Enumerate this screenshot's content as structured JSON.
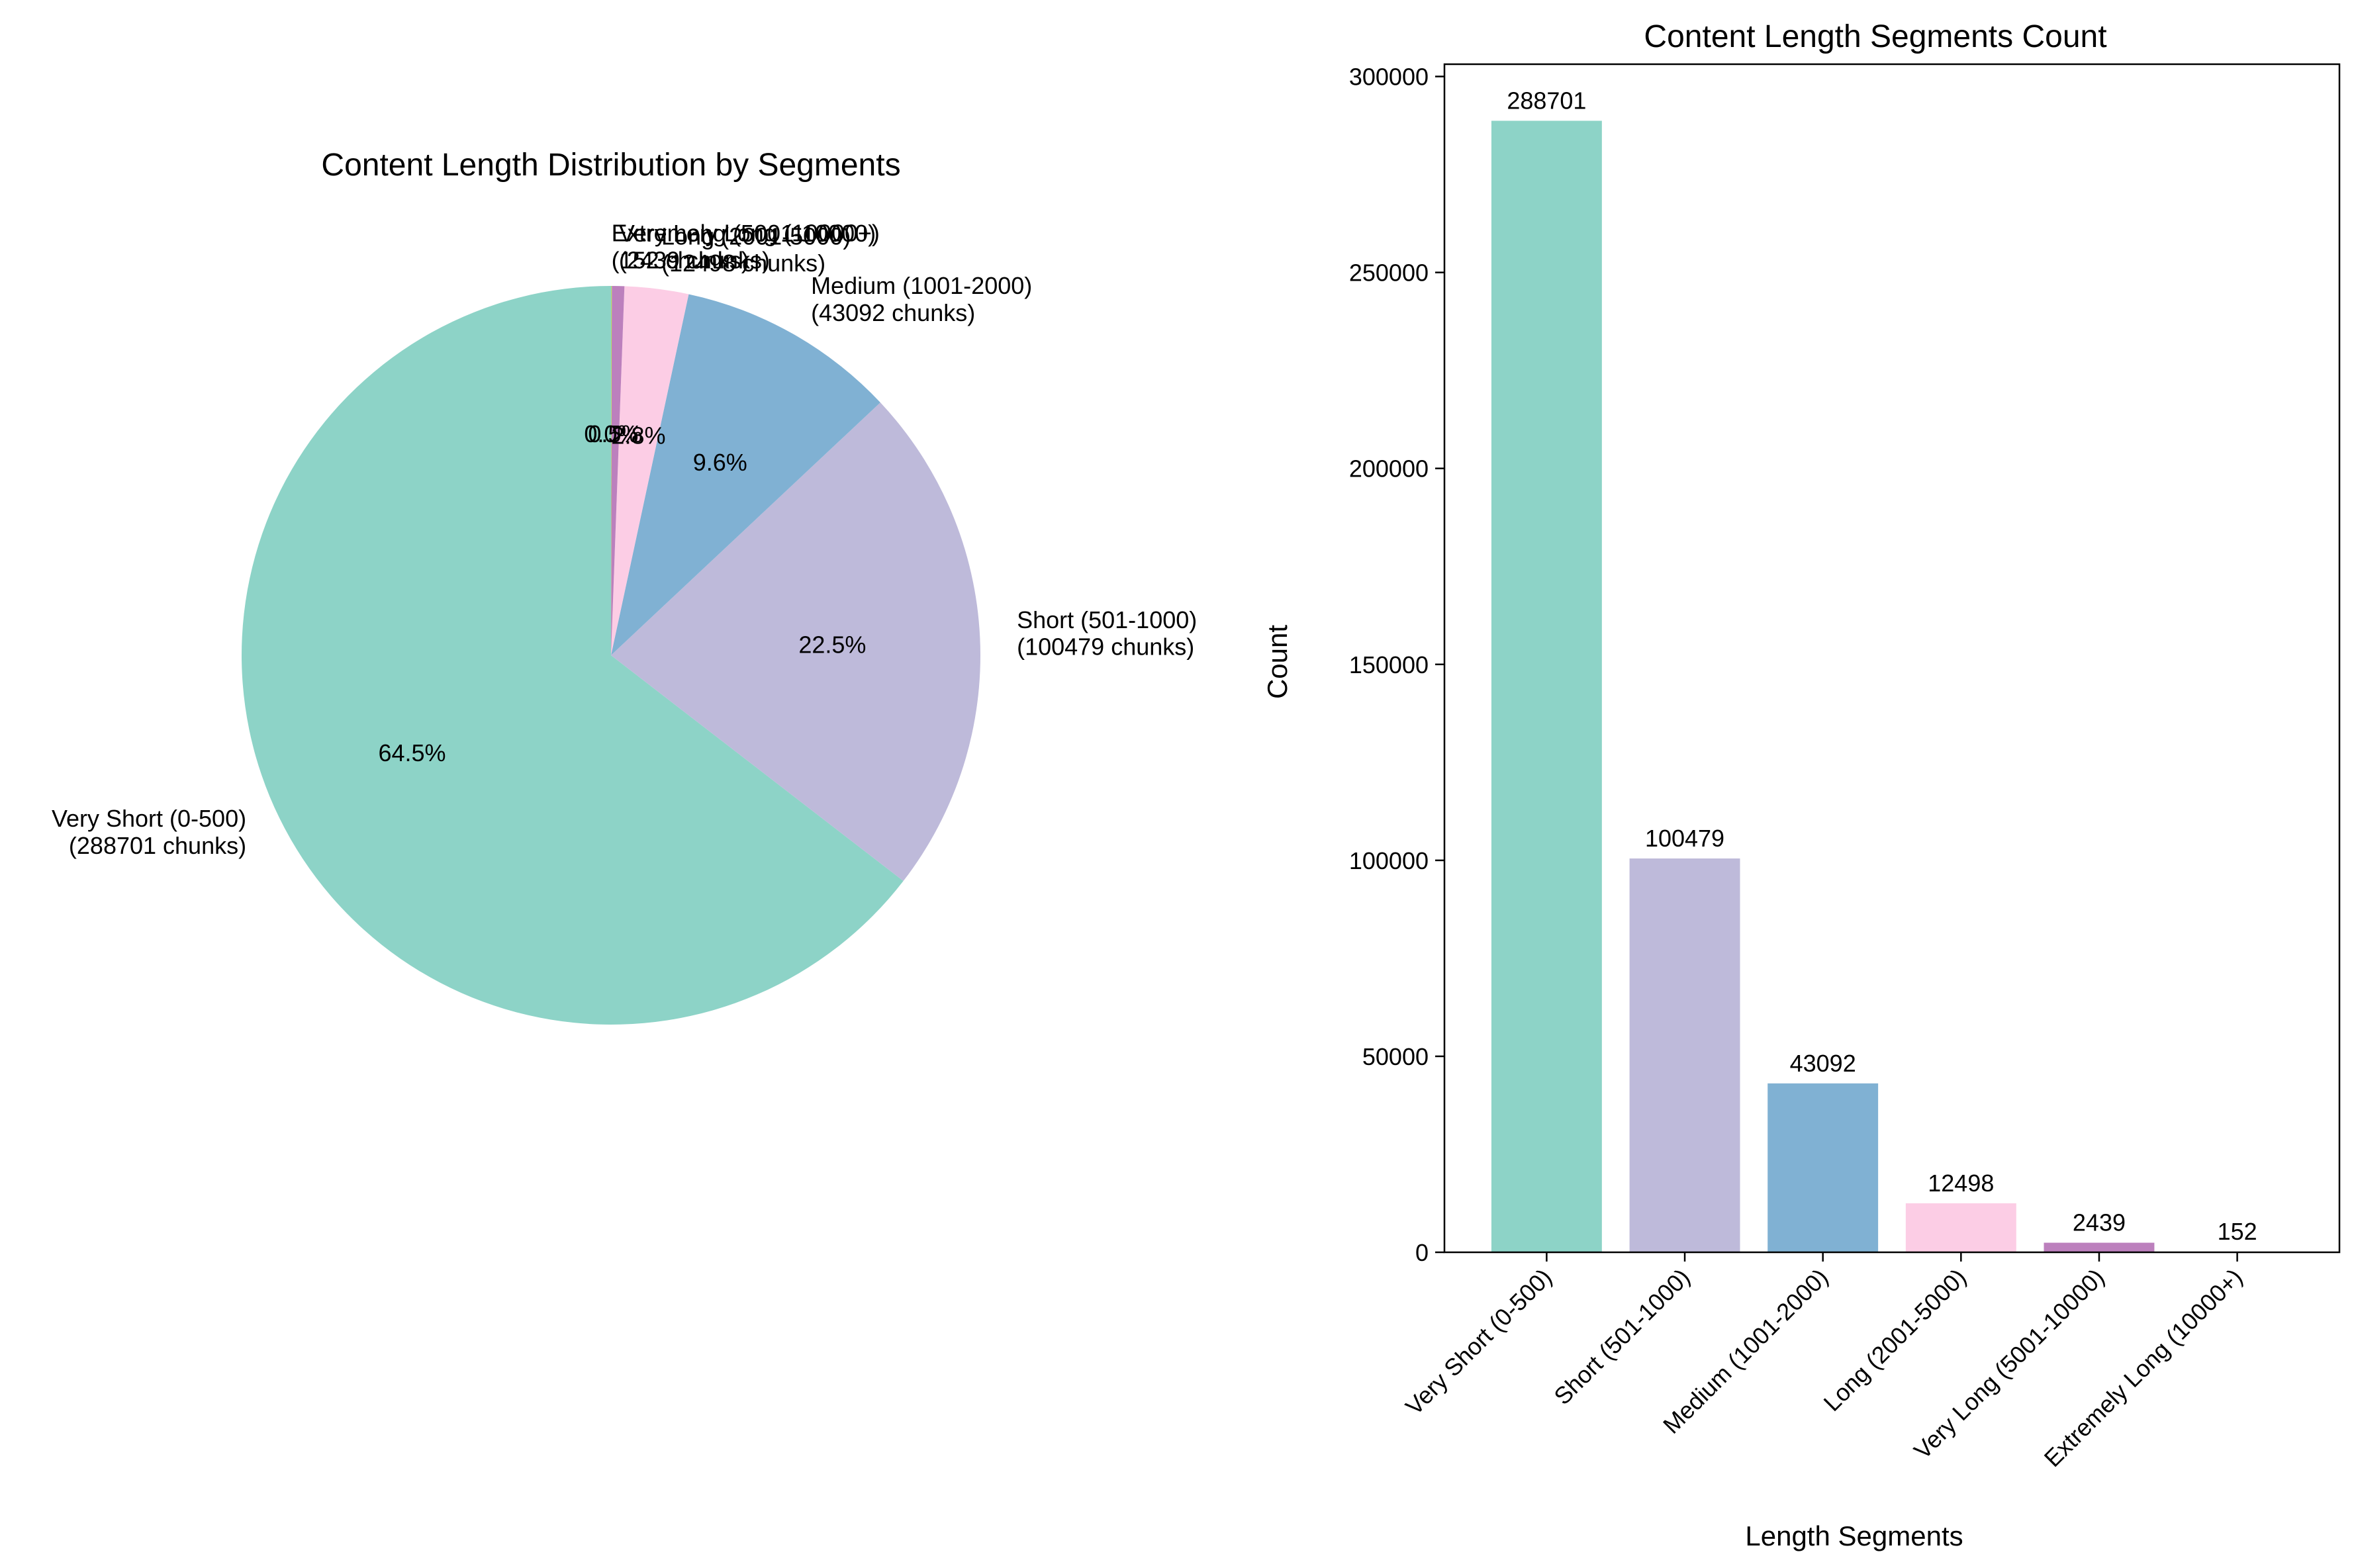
{
  "chart_data": [
    {
      "type": "pie",
      "title": "Content Length Distribution by Segments",
      "start_angle_deg": 90,
      "direction": "counterclockwise",
      "slices": [
        {
          "label": "Very Short (0-500)",
          "value": 288701,
          "annotation": "(288701 chunks)",
          "pct_label": "64.5%",
          "color": "#8dd3c7"
        },
        {
          "label": "Short (501-1000)",
          "value": 100479,
          "annotation": "(100479 chunks)",
          "pct_label": "22.5%",
          "color": "#bebada"
        },
        {
          "label": "Medium (1001-2000)",
          "value": 43092,
          "annotation": "(43092 chunks)",
          "pct_label": "9.6%",
          "color": "#80b1d3"
        },
        {
          "label": "Long (2001-5000)",
          "value": 12498,
          "annotation": "(12498 chunks)",
          "pct_label": "2.8%",
          "color": "#fccde5"
        },
        {
          "label": "Very Long (5001-10000)",
          "value": 2439,
          "annotation": "(2439 chunks)",
          "pct_label": "0.5%",
          "color": "#bc80bd"
        },
        {
          "label": "Extremely Long (10000+)",
          "value": 152,
          "annotation": "(152 chunks)",
          "pct_label": "0.0%",
          "color": "#b3de69"
        }
      ]
    },
    {
      "type": "bar",
      "title": "Content Length Segments Count",
      "xlabel": "Length Segments",
      "ylabel": "Count",
      "ylim": [
        0,
        303136
      ],
      "yticks": [
        0,
        50000,
        100000,
        150000,
        200000,
        250000,
        300000
      ],
      "categories": [
        "Very Short (0-500)",
        "Short (501-1000)",
        "Medium (1001-2000)",
        "Long (2001-5000)",
        "Very Long (5001-10000)",
        "Extremely Long (10000+)"
      ],
      "values": [
        288701,
        100479,
        43092,
        12498,
        2439,
        152
      ],
      "colors": [
        "#8dd3c7",
        "#bebada",
        "#80b1d3",
        "#fccde5",
        "#bc80bd",
        "#b3de69"
      ]
    }
  ]
}
